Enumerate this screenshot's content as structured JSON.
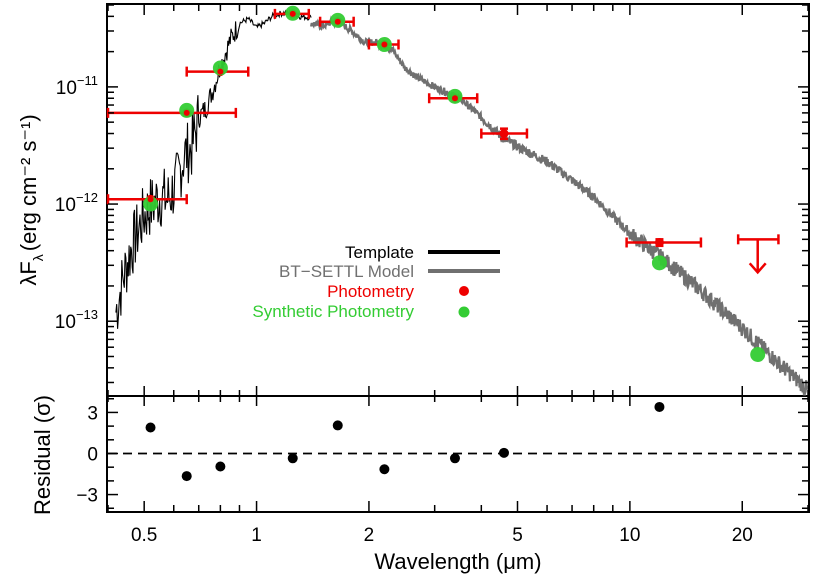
{
  "chart_data": [
    {
      "type": "scatter",
      "panel": "sed",
      "xlabel": "Wavelength (μm)",
      "ylabel_main": "λF",
      "ylabel_sub": "λ",
      "ylabel_units": "(erg cm⁻² s⁻¹)",
      "x_scale": "log",
      "y_scale": "log",
      "xlim": [
        0.4,
        30
      ],
      "ylim": [
        2.3e-14,
        5e-11
      ],
      "y_ticks": [
        {
          "value": 1e-13,
          "base": "10",
          "exp": "−13"
        },
        {
          "value": 1e-12,
          "base": "10",
          "exp": "−12"
        },
        {
          "value": 1e-11,
          "base": "10",
          "exp": "−11"
        }
      ],
      "legend": {
        "position": "center",
        "entries": [
          {
            "label": "Template",
            "color": "#000000",
            "marker": "line"
          },
          {
            "label": "BT−SETTL Model",
            "color": "#707070",
            "marker": "line"
          },
          {
            "label": "Photometry",
            "color": "#ee0000",
            "marker": "dot"
          },
          {
            "label": "Synthetic Photometry",
            "color": "#33cc33",
            "marker": "dot"
          }
        ]
      },
      "template_spectrum": {
        "color": "#000000",
        "x": [
          0.42,
          0.44,
          0.46,
          0.48,
          0.5,
          0.52,
          0.55,
          0.58,
          0.61,
          0.64,
          0.67,
          0.7,
          0.73,
          0.76,
          0.8,
          0.85,
          0.9,
          0.95,
          1.0,
          1.05,
          1.1,
          1.15,
          1.2,
          1.25,
          1.3,
          1.4
        ],
        "y": [
          1.2e-13,
          2.4e-13,
          4e-13,
          5.8e-13,
          8e-13,
          9.5e-13,
          1.15e-12,
          1.1e-12,
          1.5e-12,
          2.6e-12,
          3e-12,
          5.5e-12,
          6.5e-12,
          9e-12,
          1.5e-11,
          2.5e-11,
          3.5e-11,
          3.8e-11,
          3.2e-11,
          3.5e-11,
          4e-11,
          4.2e-11,
          4.3e-11,
          4.2e-11,
          4e-11,
          3.9e-11
        ]
      },
      "model_spectrum": {
        "color": "#707070",
        "x": [
          1.4,
          1.5,
          1.6,
          1.7,
          1.8,
          1.95,
          2.1,
          2.3,
          2.5,
          2.7,
          3.0,
          3.5,
          4.0,
          4.6,
          5.0,
          6.0,
          7.0,
          8.0,
          10.0,
          12.0,
          15.0,
          20.0,
          25.0,
          30.0
        ],
        "y": [
          3.5e-11,
          3.3e-11,
          3.6e-11,
          3.4e-11,
          3e-11,
          2.4e-11,
          2.4e-11,
          2.1e-11,
          1.45e-11,
          1.2e-11,
          1e-11,
          8e-12,
          5.5e-12,
          3.6e-12,
          3.1e-12,
          2.3e-12,
          1.6e-12,
          1.15e-12,
          5.6e-13,
          3.6e-13,
          2e-13,
          8.7e-14,
          4.4e-14,
          2.6e-14
        ]
      },
      "photometry": {
        "color": "#ee0000",
        "points": [
          {
            "x": 0.52,
            "y": 1.1e-12,
            "xerr_low": 0.4,
            "xerr_high": 0.65
          },
          {
            "x": 0.65,
            "y": 6e-12,
            "xerr_low": 0.4,
            "xerr_high": 0.88
          },
          {
            "x": 0.8,
            "y": 1.35e-11,
            "xerr_low": 0.65,
            "xerr_high": 0.95
          },
          {
            "x": 1.25,
            "y": 4.2e-11,
            "xerr_low": 1.12,
            "xerr_high": 1.38
          },
          {
            "x": 1.65,
            "y": 3.6e-11,
            "xerr_low": 1.48,
            "xerr_high": 1.82
          },
          {
            "x": 2.2,
            "y": 2.3e-11,
            "xerr_low": 2.0,
            "xerr_high": 2.4
          },
          {
            "x": 3.4,
            "y": 8e-12,
            "xerr_low": 2.9,
            "xerr_high": 3.9
          },
          {
            "x": 4.6,
            "y": 4e-12,
            "xerr_low": 4.0,
            "xerr_high": 5.3,
            "yerr_low": 3.6e-12,
            "yerr_high": 4.4e-12
          },
          {
            "x": 12.0,
            "y": 4.7e-13,
            "xerr_low": 9.8,
            "xerr_high": 15.5,
            "yerr_low": 4.4e-13,
            "yerr_high": 5e-13
          },
          {
            "x": 22.0,
            "y": 5e-13,
            "xerr_low": 19.5,
            "xerr_high": 25.0,
            "upper_limit": true
          }
        ]
      },
      "synthetic_photometry": {
        "color": "#33cc33",
        "x": [
          0.52,
          0.65,
          0.8,
          1.25,
          1.65,
          2.2,
          3.4,
          12.0,
          22.0
        ],
        "y": [
          1e-12,
          6.3e-12,
          1.45e-11,
          4.25e-11,
          3.7e-11,
          2.3e-11,
          8.3e-12,
          3.15e-13,
          5.2e-14
        ]
      }
    },
    {
      "type": "scatter",
      "panel": "residual",
      "ylabel": "Residual (σ)",
      "xlabel": "Wavelength (μm)",
      "x_scale": "log",
      "xlim": [
        0.4,
        30
      ],
      "ylim": [
        -4.2,
        4.2
      ],
      "y_ticks": [
        {
          "value": 3,
          "label": "3"
        },
        {
          "value": 0,
          "label": "0"
        },
        {
          "value": -3,
          "label": "−3"
        }
      ],
      "x_ticks": [
        {
          "value": 0.5,
          "label": "0.5"
        },
        {
          "value": 1,
          "label": "1"
        },
        {
          "value": 2,
          "label": "2"
        },
        {
          "value": 5,
          "label": "5"
        },
        {
          "value": 10,
          "label": "10"
        },
        {
          "value": 20,
          "label": "20"
        }
      ],
      "reference_line": {
        "y": 0,
        "style": "dashed"
      },
      "points": {
        "color": "#000000",
        "x": [
          0.52,
          0.65,
          0.8,
          1.25,
          2.2,
          1.65,
          3.4,
          4.6,
          12.0
        ],
        "y": [
          1.9,
          -1.65,
          -0.95,
          -0.35,
          -1.15,
          2.05,
          -0.35,
          0.05,
          3.4
        ]
      }
    }
  ]
}
